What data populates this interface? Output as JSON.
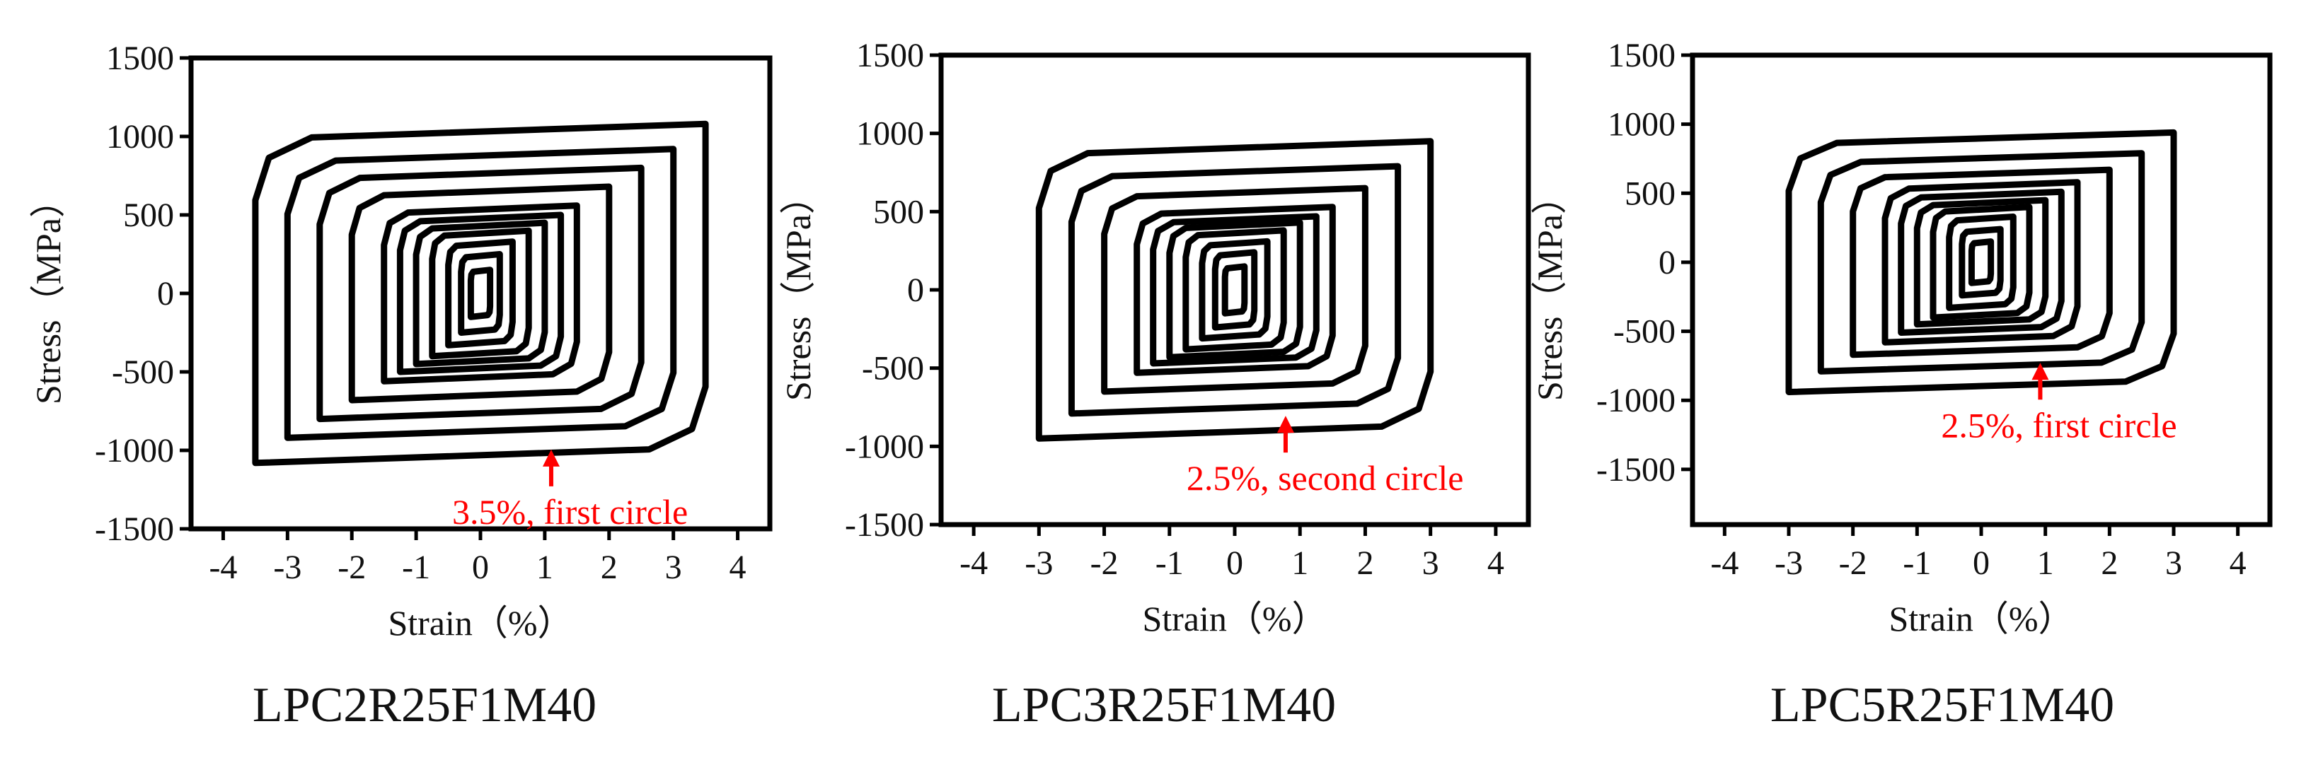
{
  "chart_data": [
    {
      "type": "line",
      "title": "LPC2R25F1M40",
      "xlabel": "Strain（%）",
      "ylabel": "Stress（MPa）",
      "xlim": [
        -4.5,
        4.5
      ],
      "ylim": [
        -1500,
        1500
      ],
      "xticks": [
        "-4",
        "-3",
        "-2",
        "-1",
        "0",
        "1",
        "2",
        "3",
        "4"
      ],
      "yticks": [
        "1500",
        "1000",
        "500",
        "0",
        "-500",
        "-1000",
        "-1500"
      ],
      "loops": [
        {
          "amp": 0.15,
          "sigma": 150
        },
        {
          "amp": 0.3,
          "sigma": 250
        },
        {
          "amp": 0.5,
          "sigma": 330
        },
        {
          "amp": 0.75,
          "sigma": 400
        },
        {
          "amp": 1.0,
          "sigma": 450
        },
        {
          "amp": 1.25,
          "sigma": 500
        },
        {
          "amp": 1.5,
          "sigma": 560
        },
        {
          "amp": 2.0,
          "sigma": 680
        },
        {
          "amp": 2.5,
          "sigma": 800
        },
        {
          "amp": 3.0,
          "sigma": 920
        },
        {
          "amp": 3.5,
          "sigma": 1080
        }
      ],
      "annotation": {
        "text": "3.5%, first circle",
        "x": 1.1,
        "y": -1040,
        "color": "#ff0000"
      }
    },
    {
      "type": "line",
      "title": "LPC3R25F1M40",
      "xlabel": "Strain（%）",
      "ylabel": "Stress（MPa）",
      "xlim": [
        -4.5,
        4.5
      ],
      "ylim": [
        -1500,
        1500
      ],
      "xticks": [
        "-4",
        "-3",
        "-2",
        "-1",
        "0",
        "1",
        "2",
        "3",
        "4"
      ],
      "yticks": [
        "1500",
        "1000",
        "500",
        "0",
        "-500",
        "-1000",
        "-1500"
      ],
      "loops": [
        {
          "amp": 0.15,
          "sigma": 150
        },
        {
          "amp": 0.3,
          "sigma": 240
        },
        {
          "amp": 0.5,
          "sigma": 310
        },
        {
          "amp": 0.75,
          "sigma": 380
        },
        {
          "amp": 1.0,
          "sigma": 430
        },
        {
          "amp": 1.25,
          "sigma": 470
        },
        {
          "amp": 1.5,
          "sigma": 530
        },
        {
          "amp": 2.0,
          "sigma": 650
        },
        {
          "amp": 2.5,
          "sigma": 790
        },
        {
          "amp": 3.0,
          "sigma": 950
        }
      ],
      "annotation": {
        "text": "2.5%, second circle",
        "x": 0.78,
        "y": -850,
        "color": "#ff0000"
      }
    },
    {
      "type": "line",
      "title": "LPC5R25F1M40",
      "xlabel": "Strain（%）",
      "ylabel": "Stress（MPa）",
      "xlim": [
        -4.5,
        4.5
      ],
      "ylim": [
        -1900,
        1500
      ],
      "xticks": [
        "-4",
        "-3",
        "-2",
        "-1",
        "0",
        "1",
        "2",
        "3",
        "4"
      ],
      "yticks": [
        "1500",
        "1000",
        "500",
        "0",
        "-500",
        "-1000",
        "-1500"
      ],
      "loops": [
        {
          "amp": 0.15,
          "sigma": 150
        },
        {
          "amp": 0.3,
          "sigma": 240
        },
        {
          "amp": 0.5,
          "sigma": 330
        },
        {
          "amp": 0.75,
          "sigma": 400
        },
        {
          "amp": 1.0,
          "sigma": 450
        },
        {
          "amp": 1.25,
          "sigma": 510
        },
        {
          "amp": 1.5,
          "sigma": 580
        },
        {
          "amp": 2.0,
          "sigma": 670
        },
        {
          "amp": 2.5,
          "sigma": 790
        },
        {
          "amp": 3.0,
          "sigma": 940
        }
      ],
      "annotation": {
        "text": "2.5%, first circle",
        "x": 0.92,
        "y": -780,
        "color": "#ff0000"
      }
    }
  ]
}
